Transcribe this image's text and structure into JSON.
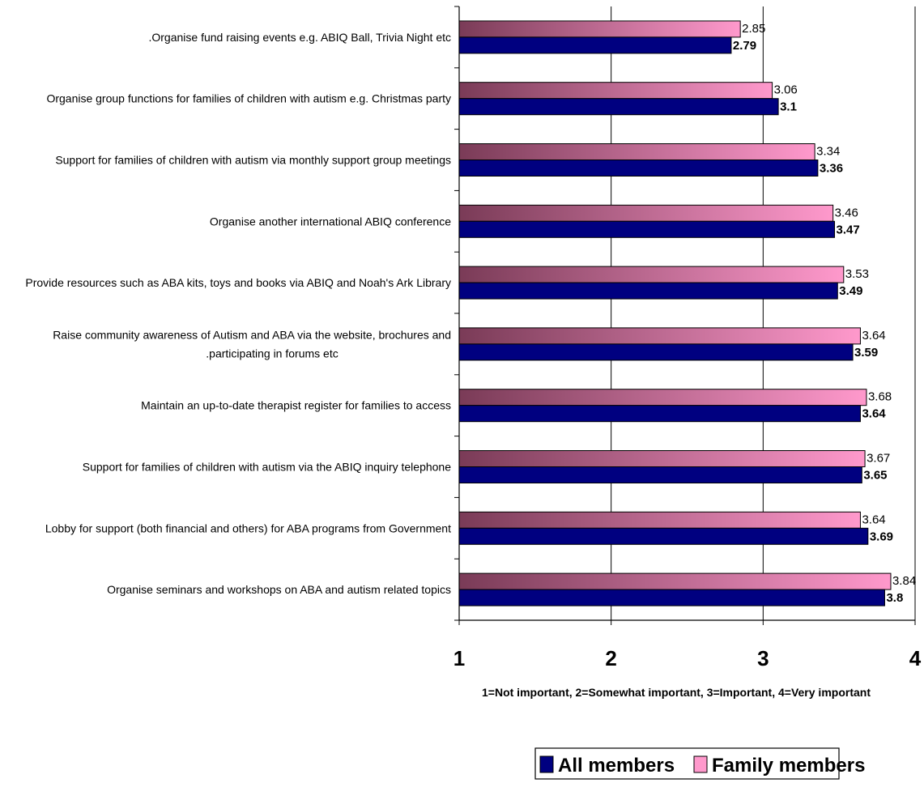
{
  "chart_data": {
    "type": "bar",
    "orientation": "horizontal",
    "title": "",
    "xlabel": "1=Not important, 2=Somewhat important, 3=Important, 4=Very important",
    "ylabel": "",
    "xlim": [
      1,
      4
    ],
    "xticks": [
      "1",
      "2",
      "3",
      "4"
    ],
    "grid": true,
    "legend_position": "bottom-right",
    "categories": [
      [
        ".Organise fund raising events e.g. ABIQ Ball, Trivia Night etc"
      ],
      [
        "Organise group functions for families of children with autism e.g. Christmas party"
      ],
      [
        "Support for families of children with autism via monthly support group meetings"
      ],
      [
        "Organise another international ABIQ conference"
      ],
      [
        "Provide resources such as ABA kits, toys and books via ABIQ and Noah's Ark Library"
      ],
      [
        "Raise community awareness of Autism and ABA via the website, brochures and",
        ".participating in forums etc"
      ],
      [
        "Maintain an up-to-date therapist register for families to access"
      ],
      [
        "Support for families of children with autism via the ABIQ inquiry telephone"
      ],
      [
        "Lobby for support (both financial and others) for ABA programs from Government"
      ],
      [
        "Organise seminars and workshops on ABA and autism related topics"
      ]
    ],
    "series": [
      {
        "name": "Family members",
        "color_start": "#7a3b57",
        "color_end": "#ff99cc",
        "values": [
          2.85,
          3.06,
          3.34,
          3.46,
          3.53,
          3.64,
          3.68,
          3.67,
          3.64,
          3.84
        ],
        "value_labels": [
          "2.85",
          "3.06",
          "3.34",
          "3.46",
          "3.53",
          "3.64",
          "3.68",
          "3.67",
          "3.64",
          "3.84"
        ]
      },
      {
        "name": "All members",
        "color": "#000080",
        "values": [
          2.79,
          3.1,
          3.36,
          3.47,
          3.49,
          3.59,
          3.64,
          3.65,
          3.69,
          3.8
        ],
        "value_labels": [
          "2.79",
          "3.1",
          "3.36",
          "3.47",
          "3.49",
          "3.59",
          "3.64",
          "3.65",
          "3.69",
          "3.8"
        ]
      }
    ],
    "legend": {
      "all_label": "All members",
      "family_label": "Family members"
    }
  }
}
